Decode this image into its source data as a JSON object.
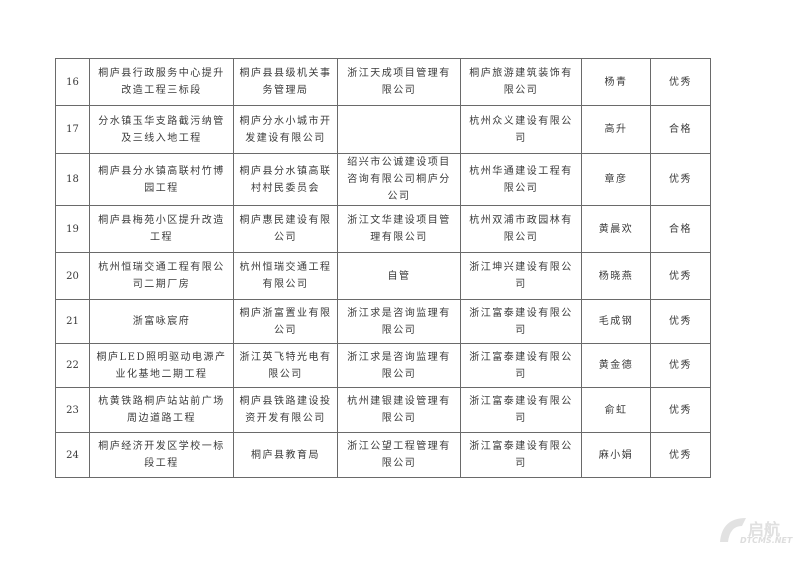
{
  "table": {
    "rows": [
      {
        "no": "16",
        "project": "桐庐县行政服务中心提升改造工程三标段",
        "builder": "桐庐县县级机关事务管理局",
        "supervisor": "浙江天成项目管理有限公司",
        "contractor": "桐庐旅游建筑装饰有限公司",
        "manager": "杨青",
        "rating": "优秀"
      },
      {
        "no": "17",
        "project": "分水镇玉华支路截污纳管及三线入地工程",
        "builder": "桐庐分水小城市开发建设有限公司",
        "supervisor": "",
        "contractor": "杭州众义建设有限公司",
        "manager": "高升",
        "rating": "合格"
      },
      {
        "no": "18",
        "project": "桐庐县分水镇高联村竹博园工程",
        "builder": "桐庐县分水镇高联村村民委员会",
        "supervisor": "绍兴市公诚建设项目咨询有限公司桐庐分公司",
        "contractor": "杭州华通建设工程有限公司",
        "manager": "章彦",
        "rating": "优秀"
      },
      {
        "no": "19",
        "project": "桐庐县梅苑小区提升改造工程",
        "builder": "桐庐惠民建设有限公司",
        "supervisor": "浙江文华建设项目管理有限公司",
        "contractor": "杭州双浦市政园林有限公司",
        "manager": "黄晨欢",
        "rating": "合格"
      },
      {
        "no": "20",
        "project": "杭州恒瑞交通工程有限公司二期厂房",
        "builder": "杭州恒瑞交通工程有限公司",
        "supervisor": "自管",
        "contractor": "浙江坤兴建设有限公司",
        "manager": "杨晓燕",
        "rating": "优秀"
      },
      {
        "no": "21",
        "project": "浙富咏宸府",
        "builder": "桐庐浙富置业有限公司",
        "supervisor": "浙江求是咨询监理有限公司",
        "contractor": "浙江富泰建设有限公司",
        "manager": "毛成钢",
        "rating": "优秀"
      },
      {
        "no": "22",
        "project": "桐庐LED照明驱动电源产业化基地二期工程",
        "builder": "浙江英飞特光电有限公司",
        "supervisor": "浙江求是咨询监理有限公司",
        "contractor": "浙江富泰建设有限公司",
        "manager": "黄金德",
        "rating": "优秀"
      },
      {
        "no": "23",
        "project": "杭黄铁路桐庐站站前广场周边道路工程",
        "builder": "桐庐县铁路建设投资开发有限公司",
        "supervisor": "杭州建银建设管理有限公司",
        "contractor": "浙江富泰建设有限公司",
        "manager": "俞虹",
        "rating": "优秀"
      },
      {
        "no": "24",
        "project": "桐庐经济开发区学校一标段工程",
        "builder": "桐庐县教育局",
        "supervisor": "浙江公望工程管理有限公司",
        "contractor": "浙江富泰建设有限公司",
        "manager": "麻小娟",
        "rating": "优秀"
      }
    ]
  },
  "watermark": {
    "logo_cn": "启航",
    "logo_en": "DTCMS.NET",
    "color": "#dddddd"
  }
}
